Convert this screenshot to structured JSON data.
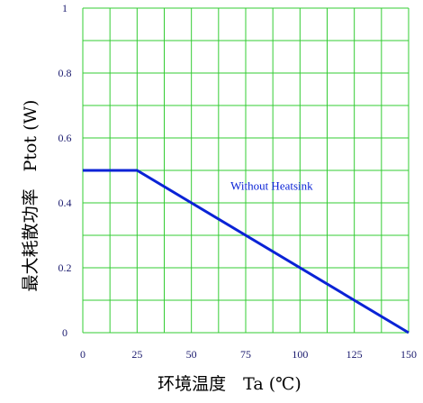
{
  "chart_data": {
    "type": "line",
    "title": "",
    "xlabel": "环境温度　Ta (℃)",
    "ylabel": "最大耗散功率　Ptot (W)",
    "xlim": [
      0,
      150
    ],
    "ylim": [
      0,
      1
    ],
    "x_ticks": [
      "0",
      "25",
      "50",
      "75",
      "100",
      "125",
      "150"
    ],
    "y_ticks": [
      "0",
      "0.2",
      "0.4",
      "0.6",
      "0.8",
      "1"
    ],
    "grid": true,
    "series": [
      {
        "x": [
          0,
          25,
          150
        ],
        "y": [
          0.5,
          0.5,
          0
        ]
      }
    ],
    "annotations": [
      {
        "text": "Without Heatsink",
        "x": 68,
        "y": 0.44
      }
    ]
  },
  "colors": {
    "grid": "#33cc33",
    "line": "#0a23d6",
    "tick_text": "#1a1a6e"
  }
}
